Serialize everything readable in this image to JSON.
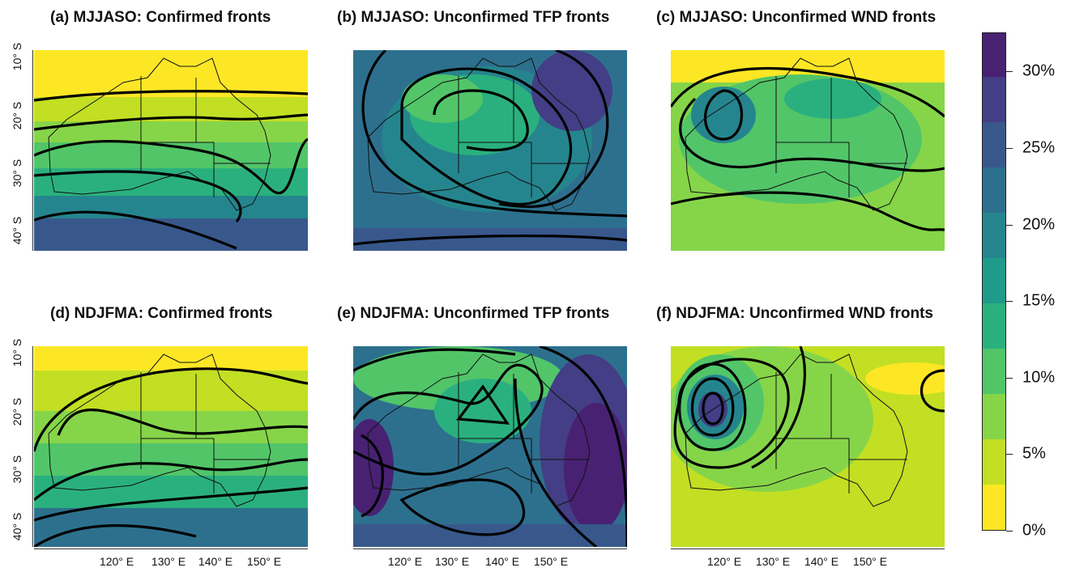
{
  "panels": [
    {
      "id": "a",
      "title": "(a) MJJASO: Confirmed fronts"
    },
    {
      "id": "b",
      "title": "(b) MJJASO: Unconfirmed TFP fronts"
    },
    {
      "id": "c",
      "title": "(c) MJJASO: Unconfirmed WND fronts"
    },
    {
      "id": "d",
      "title": "(d) NDJFMA: Confirmed fronts"
    },
    {
      "id": "e",
      "title": "(e) NDJFMA: Unconfirmed TFP fronts"
    },
    {
      "id": "f",
      "title": "(f) NDJFMA: Unconfirmed WND fronts"
    }
  ],
  "axes": {
    "y_ticks": [
      "10° S",
      "20° S",
      "30° S",
      "40° S"
    ],
    "x_ticks": [
      "120° E",
      "130° E",
      "140° E",
      "150° E"
    ]
  },
  "colorbar": {
    "labels": [
      "0%",
      "5%",
      "10%",
      "15%",
      "20%",
      "25%",
      "30%"
    ],
    "colors": [
      "#fde725",
      "#c2df23",
      "#86d549",
      "#52c569",
      "#2ab07f",
      "#1e9b8a",
      "#25858e",
      "#2d708e",
      "#38588c",
      "#433e85",
      "#482173"
    ]
  }
}
